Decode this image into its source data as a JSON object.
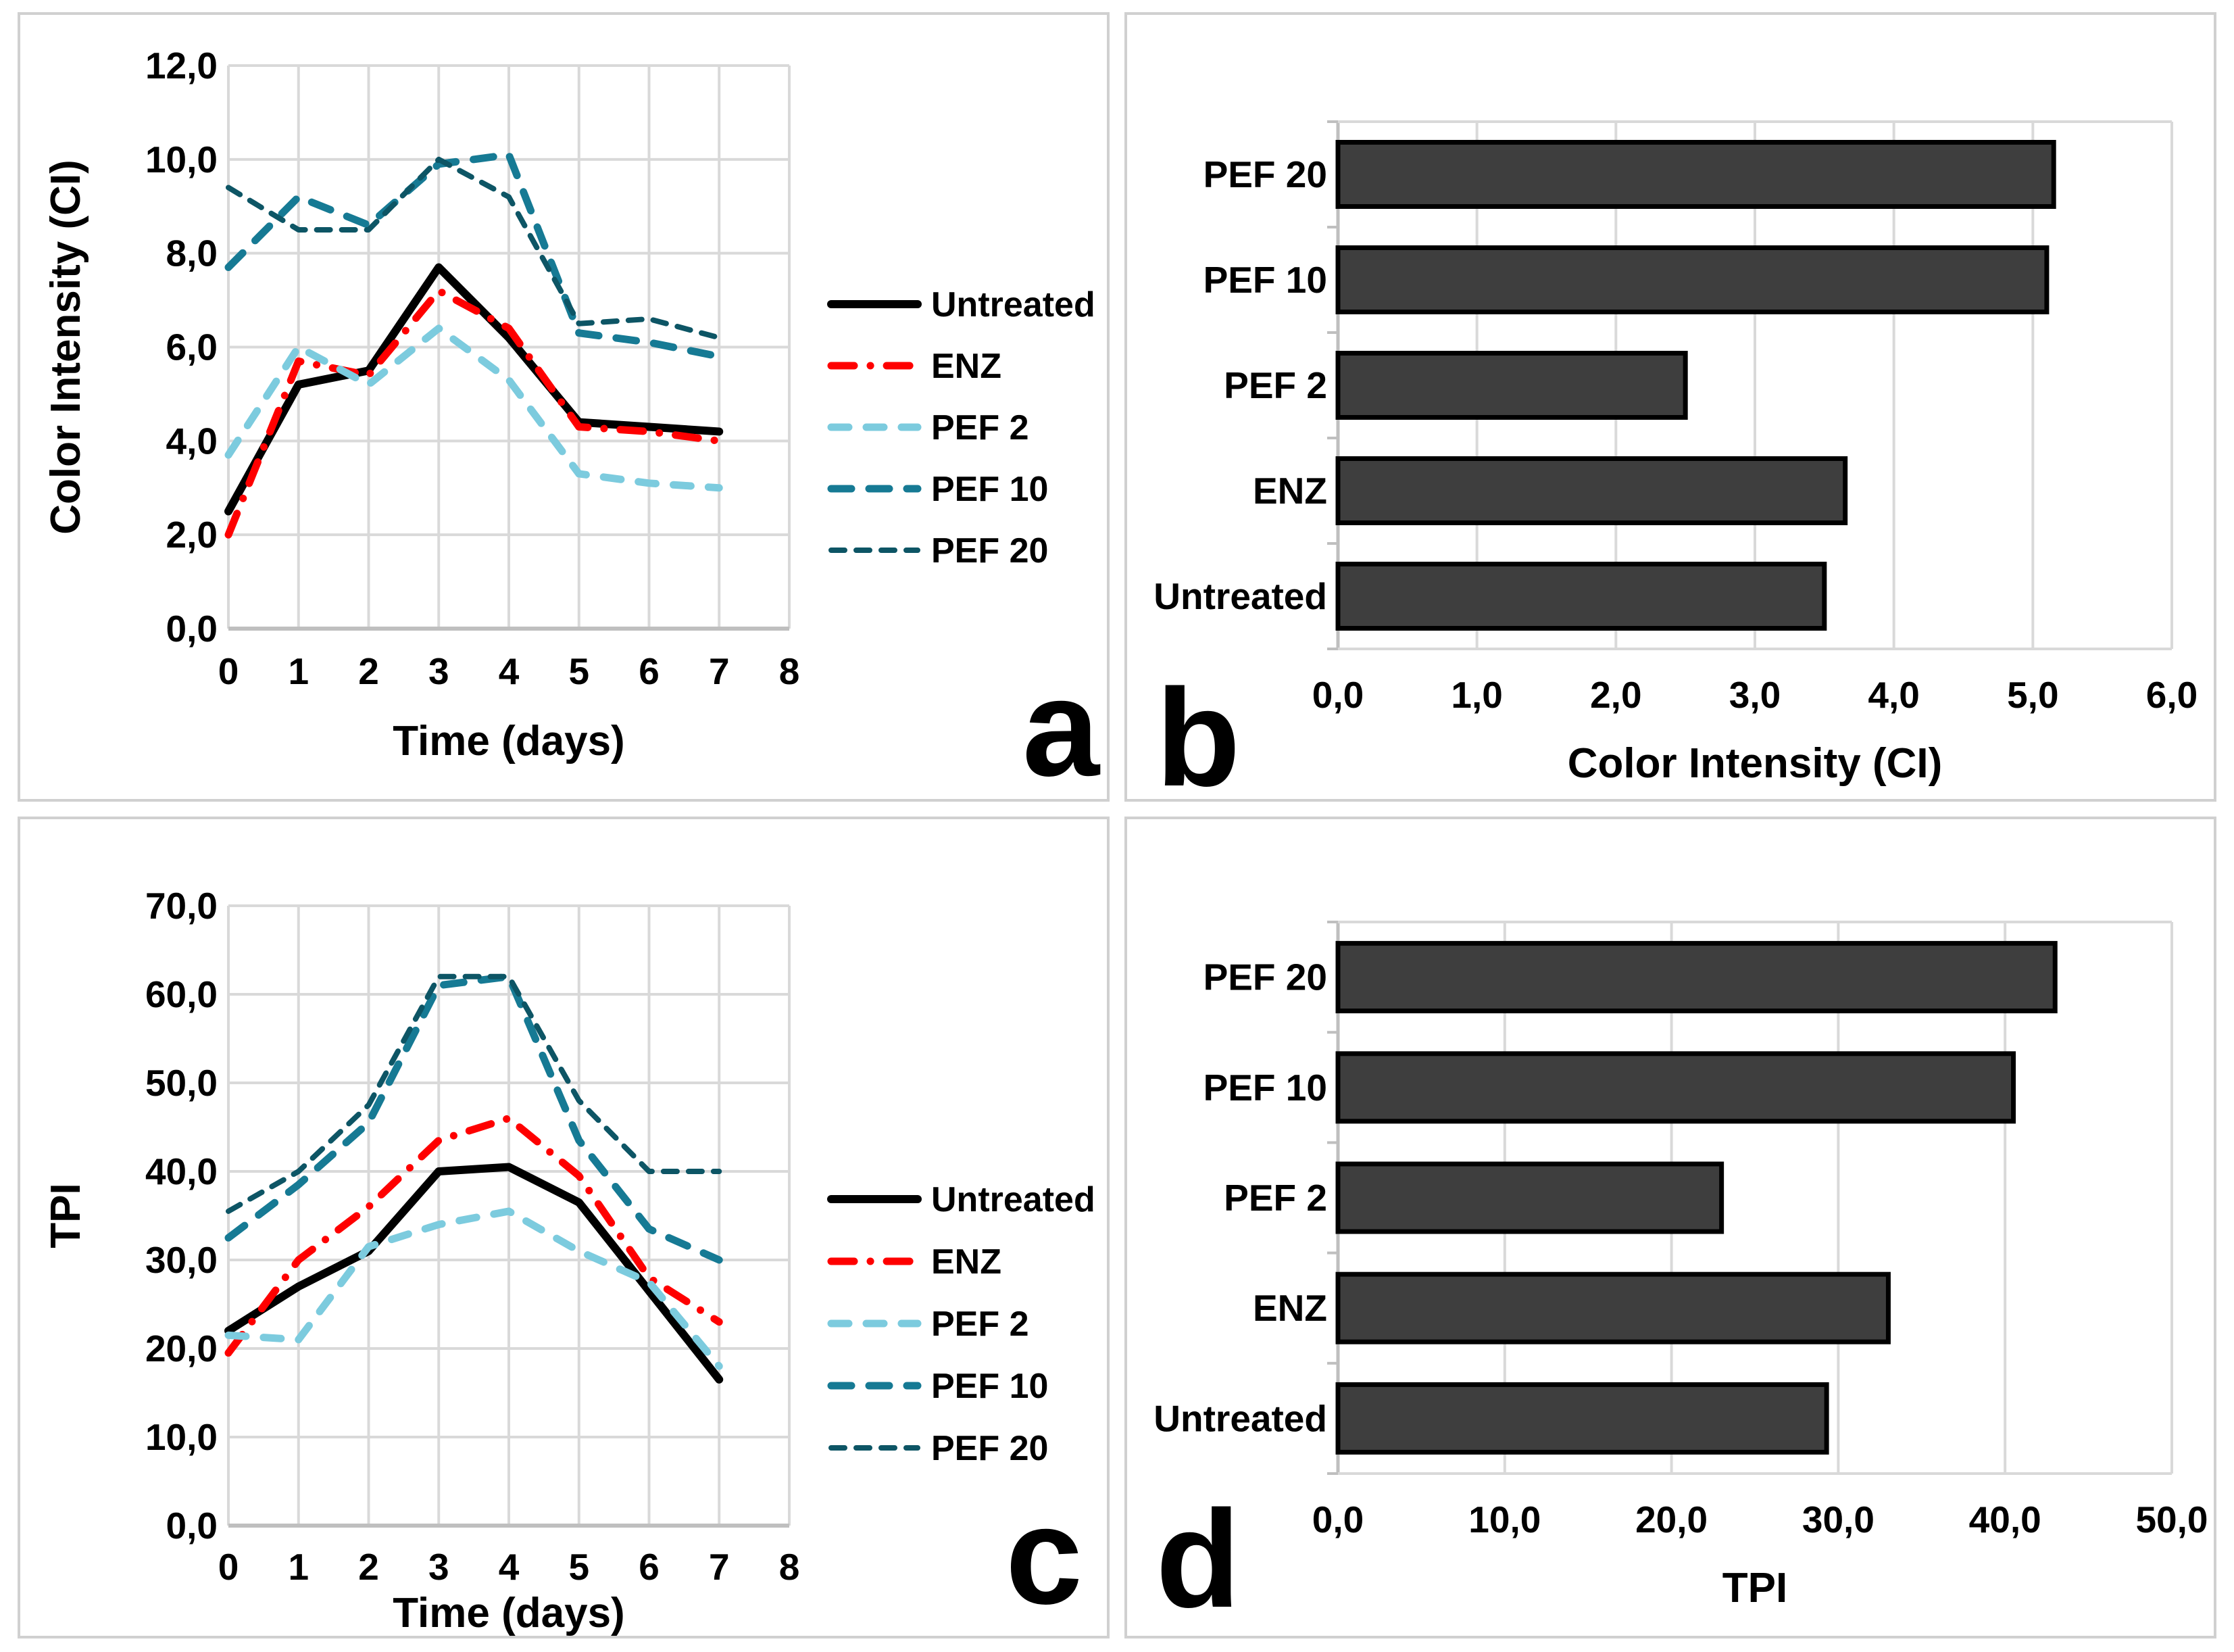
{
  "figure": {
    "background": "#ffffff",
    "panel_border_color": "#d0d0d0",
    "panel_letters": [
      "a",
      "b",
      "c",
      "d"
    ]
  },
  "styles": {
    "grid_color": "#d9d9d9",
    "axis_color": "#bfbfbf",
    "text_color": "#000000",
    "bar_fill": "#3e3e3e",
    "bar_stroke": "#000000",
    "series_styles": [
      {
        "name": "Untreated",
        "color": "#000000",
        "dash": "solid",
        "width": 12
      },
      {
        "name": "ENZ",
        "color": "#fe0000",
        "dash": "dashdot",
        "width": 11
      },
      {
        "name": "PEF 2",
        "color": "#7ccbde",
        "dash": "dash",
        "width": 11
      },
      {
        "name": "PEF 10",
        "color": "#167a94",
        "dash": "dash-long",
        "width": 11
      },
      {
        "name": "PEF 20",
        "color": "#0d5565",
        "dash": "dash-small",
        "width": 8
      }
    ]
  },
  "chart_data": [
    {
      "id": "a",
      "type": "line",
      "panel_letter": "a",
      "xlabel": "Time (days)",
      "ylabel": "Color Intensity (CI)",
      "x": [
        0,
        1,
        2,
        3,
        4,
        5,
        6,
        7
      ],
      "xlim": [
        0,
        8
      ],
      "ylim": [
        0,
        12
      ],
      "xtick_labels": [
        "0",
        "1",
        "2",
        "3",
        "4",
        "5",
        "6",
        "7",
        "8"
      ],
      "ytick_labels": [
        "0,0",
        "2,0",
        "4,0",
        "6,0",
        "8,0",
        "10,0",
        "12,0"
      ],
      "grid": true,
      "legend_position": "right",
      "legend_entries": [
        "Untreated",
        "ENZ",
        "PEF 2",
        "PEF 10",
        "PEF 20"
      ],
      "series": [
        {
          "name": "Untreated",
          "values": [
            2.5,
            5.2,
            5.5,
            7.7,
            6.2,
            4.4,
            4.3,
            4.2
          ]
        },
        {
          "name": "ENZ",
          "values": [
            2.0,
            5.7,
            5.4,
            7.2,
            6.4,
            4.3,
            4.2,
            4.0
          ]
        },
        {
          "name": "PEF 2",
          "values": [
            3.7,
            6.0,
            5.2,
            6.4,
            5.3,
            3.3,
            3.1,
            3.0
          ]
        },
        {
          "name": "PEF 10",
          "values": [
            7.7,
            9.2,
            8.6,
            9.9,
            10.1,
            6.3,
            6.1,
            5.8
          ]
        },
        {
          "name": "PEF 20",
          "values": [
            9.4,
            8.5,
            8.5,
            10.0,
            9.2,
            6.5,
            6.6,
            6.2
          ]
        }
      ]
    },
    {
      "id": "b",
      "type": "bar",
      "panel_letter": "b",
      "xlabel": "Color Intensity (CI)",
      "categories": [
        "PEF 20",
        "PEF 10",
        "PEF 2",
        "ENZ",
        "Untreated"
      ],
      "values": [
        5.15,
        5.1,
        2.5,
        3.65,
        3.5
      ],
      "xlim": [
        0,
        6
      ],
      "xtick_step": 1,
      "xtick_labels": [
        "0,0",
        "1,0",
        "2,0",
        "3,0",
        "4,0",
        "5,0",
        "6,0"
      ],
      "grid": true
    },
    {
      "id": "c",
      "type": "line",
      "panel_letter": "c",
      "xlabel": "Time (days)",
      "ylabel": "TPI",
      "x": [
        0,
        1,
        2,
        3,
        4,
        5,
        6,
        7
      ],
      "xlim": [
        0,
        8
      ],
      "ylim": [
        0,
        70
      ],
      "xtick_labels": [
        "0",
        "1",
        "2",
        "3",
        "4",
        "5",
        "6",
        "7",
        "8"
      ],
      "ytick_labels": [
        "0,0",
        "10,0",
        "20,0",
        "30,0",
        "40,0",
        "50,0",
        "60,0",
        "70,0"
      ],
      "grid": true,
      "legend_position": "right",
      "legend_entries": [
        "Untreated",
        "ENZ",
        "PEF 2",
        "PEF 10",
        "PEF 20"
      ],
      "series": [
        {
          "name": "Untreated",
          "values": [
            22.0,
            27.0,
            31.0,
            40.0,
            40.5,
            36.5,
            26.5,
            16.5
          ]
        },
        {
          "name": "ENZ",
          "values": [
            19.5,
            30.0,
            36.0,
            43.5,
            46.0,
            39.5,
            28.0,
            23.0
          ]
        },
        {
          "name": "PEF 2",
          "values": [
            21.5,
            21.0,
            31.5,
            34.0,
            35.5,
            31.0,
            27.5,
            18.0
          ]
        },
        {
          "name": "PEF 10",
          "values": [
            32.5,
            38.5,
            45.5,
            61.0,
            62.0,
            43.5,
            33.5,
            30.0
          ]
        },
        {
          "name": "PEF 20",
          "values": [
            35.5,
            40.0,
            47.5,
            62.0,
            62.0,
            48.0,
            40.0,
            40.0
          ]
        }
      ]
    },
    {
      "id": "d",
      "type": "bar",
      "panel_letter": "d",
      "xlabel": "TPI",
      "categories": [
        "PEF 20",
        "PEF 10",
        "PEF 2",
        "ENZ",
        "Untreated"
      ],
      "values": [
        43.0,
        40.5,
        23.0,
        33.0,
        29.3
      ],
      "xlim": [
        0,
        50
      ],
      "xtick_step": 10,
      "xtick_labels": [
        "0,0",
        "10,0",
        "20,0",
        "30,0",
        "40,0",
        "50,0"
      ],
      "grid": true
    }
  ]
}
